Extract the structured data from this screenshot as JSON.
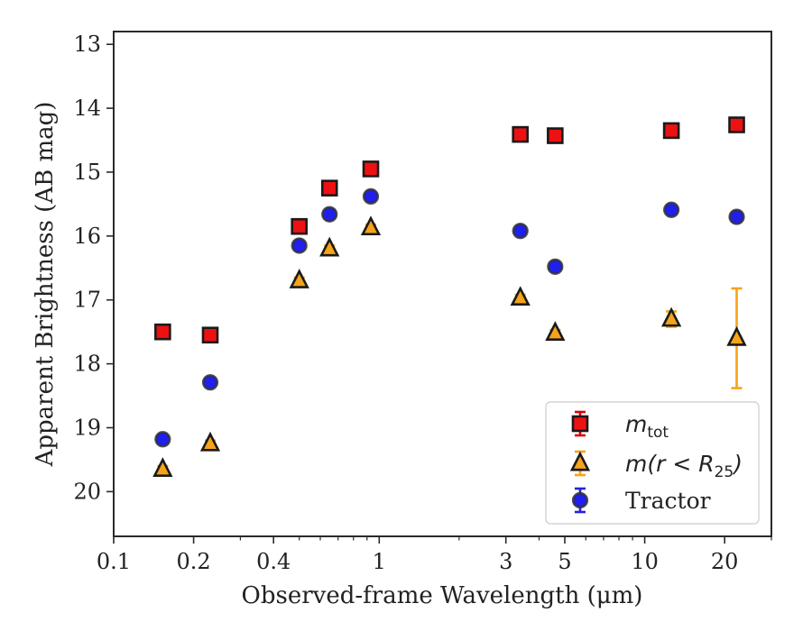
{
  "chart_data": {
    "type": "scatter",
    "xscale": "log",
    "xlim": [
      0.1,
      30
    ],
    "ylim": [
      20.7,
      12.8
    ],
    "y_inverted": true,
    "xlabel": "Observed-frame Wavelength (μm)",
    "ylabel": "Apparent Brightness (AB mag)",
    "xticks": [
      {
        "value": 0.1,
        "label": "0.1"
      },
      {
        "value": 0.2,
        "label": "0.2"
      },
      {
        "value": 0.4,
        "label": "0.4"
      },
      {
        "value": 1,
        "label": "1"
      },
      {
        "value": 3,
        "label": "3"
      },
      {
        "value": 5,
        "label": "5"
      },
      {
        "value": 10,
        "label": "10"
      },
      {
        "value": 20,
        "label": "20"
      }
    ],
    "xminor": [
      0.3,
      0.5,
      0.6,
      0.7,
      0.8,
      0.9,
      2,
      4,
      6,
      7,
      8,
      9,
      30
    ],
    "yticks": [
      "13",
      "14",
      "15",
      "16",
      "17",
      "18",
      "19",
      "20"
    ],
    "grid": false,
    "legend_position": "lower-right",
    "series": [
      {
        "name_main": "m",
        "name_sub": "tot",
        "marker": "square",
        "color": "#ee1111",
        "edge": "#1a1a1a",
        "errorbar_color": "#dd0000",
        "points": [
          {
            "x": 0.153,
            "y": 17.5,
            "err": 0.05
          },
          {
            "x": 0.231,
            "y": 17.55,
            "err": 0.05
          },
          {
            "x": 0.5,
            "y": 15.85,
            "err": 0.05
          },
          {
            "x": 0.65,
            "y": 15.25,
            "err": 0.05
          },
          {
            "x": 0.93,
            "y": 14.95,
            "err": 0.05
          },
          {
            "x": 3.4,
            "y": 14.41,
            "err": 0.05
          },
          {
            "x": 4.6,
            "y": 14.43,
            "err": 0.05
          },
          {
            "x": 12.6,
            "y": 14.35,
            "err": 0.05
          },
          {
            "x": 22.2,
            "y": 14.26,
            "err": 0.05
          }
        ]
      },
      {
        "name_main": "m(r < R",
        "name_sub": "25",
        "name_tail": ")",
        "marker": "triangle",
        "color": "#f5a31a",
        "edge": "#1a1a1a",
        "errorbar_color": "#f5a31a",
        "points": [
          {
            "x": 0.153,
            "y": 19.65,
            "err": 0.05
          },
          {
            "x": 0.231,
            "y": 19.25,
            "err": 0.05
          },
          {
            "x": 0.5,
            "y": 16.7,
            "err": 0.05
          },
          {
            "x": 0.65,
            "y": 16.2,
            "err": 0.05
          },
          {
            "x": 0.93,
            "y": 15.87,
            "err": 0.05
          },
          {
            "x": 3.4,
            "y": 16.97,
            "err": 0.05
          },
          {
            "x": 4.6,
            "y": 17.52,
            "err": 0.05
          },
          {
            "x": 12.6,
            "y": 17.3,
            "err": 0.12
          },
          {
            "x": 22.2,
            "y": 17.6,
            "err": 0.78
          }
        ]
      },
      {
        "name_main": "Tractor",
        "marker": "circle",
        "color": "#1f1fee",
        "edge": "#333333",
        "errorbar_color": "#2222dd",
        "points": [
          {
            "x": 0.153,
            "y": 19.18,
            "err": 0.06
          },
          {
            "x": 0.231,
            "y": 18.29,
            "err": 0.06
          },
          {
            "x": 0.5,
            "y": 16.15,
            "err": 0.06
          },
          {
            "x": 0.65,
            "y": 15.66,
            "err": 0.06
          },
          {
            "x": 0.93,
            "y": 15.38,
            "err": 0.06
          },
          {
            "x": 3.4,
            "y": 15.92,
            "err": 0.06
          },
          {
            "x": 4.6,
            "y": 16.48,
            "err": 0.06
          },
          {
            "x": 12.6,
            "y": 15.59,
            "err": 0.06
          },
          {
            "x": 22.2,
            "y": 15.7,
            "err": 0.06
          }
        ]
      }
    ]
  }
}
